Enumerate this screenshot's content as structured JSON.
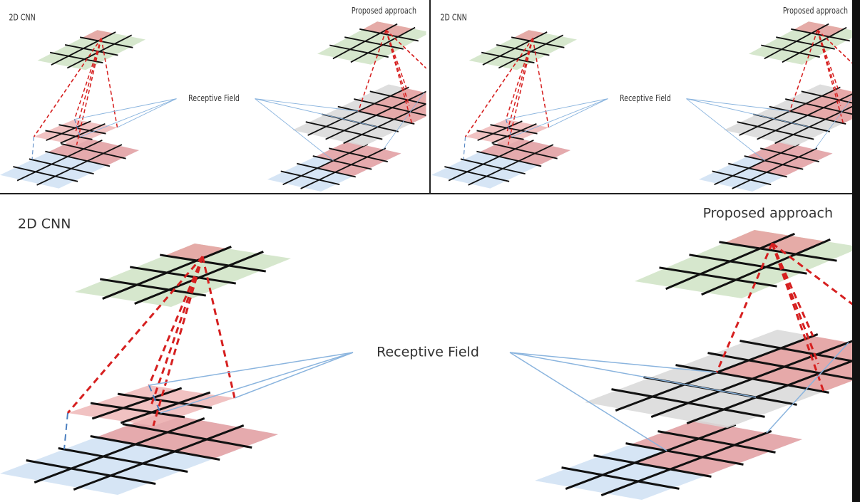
{
  "panels": [
    {
      "left_title": "2D CNN",
      "right_title": "Proposed approach",
      "label": "Receptive Field"
    },
    {
      "left_title": "2D CNN",
      "right_title": "Proposed approach",
      "label": "Receptive Field"
    },
    {
      "left_title": "2D CNN",
      "right_title": "Proposed approach",
      "label": "Receptive Field"
    }
  ]
}
